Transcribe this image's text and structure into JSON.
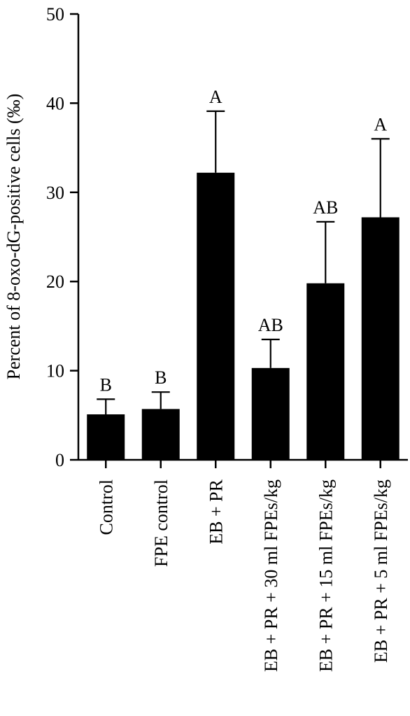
{
  "chart_data": {
    "type": "bar",
    "title": "",
    "xlabel": "",
    "ylabel": "Percent of 8-oxo-dG-positive cells (‰)",
    "ylim": [
      0,
      50
    ],
    "yticks": [
      0,
      10,
      20,
      30,
      40,
      50
    ],
    "grid": false,
    "categories": [
      "Control",
      "FPE control",
      "EB + PR",
      "EB + PR + 30 ml FPEs/kg",
      "EB + PR + 15 ml FPEs/kg",
      "EB + PR + 5 ml FPEs/kg"
    ],
    "values": [
      5.1,
      5.7,
      32.2,
      10.3,
      19.8,
      27.2
    ],
    "error_upper": [
      1.7,
      1.9,
      6.9,
      3.2,
      6.9,
      8.8
    ],
    "significance_labels": [
      "B",
      "B",
      "A",
      "AB",
      "AB",
      "A"
    ],
    "bar_color": "#000000"
  }
}
